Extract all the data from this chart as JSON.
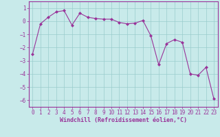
{
  "x": [
    0,
    1,
    2,
    3,
    4,
    5,
    6,
    7,
    8,
    9,
    10,
    11,
    12,
    13,
    14,
    15,
    16,
    17,
    18,
    19,
    20,
    21,
    22,
    23
  ],
  "y": [
    -2.5,
    -0.2,
    0.3,
    0.7,
    0.8,
    -0.3,
    0.6,
    0.3,
    0.2,
    0.15,
    0.15,
    -0.1,
    -0.2,
    -0.15,
    0.05,
    -1.1,
    -3.3,
    -1.7,
    -1.4,
    -1.6,
    -4.0,
    -4.1,
    -3.5,
    -5.9
  ],
  "line_color": "#993399",
  "marker": "D",
  "marker_size": 2.0,
  "bg_color": "#c8eaea",
  "grid_color": "#99cccc",
  "xlabel": "Windchill (Refroidissement éolien,°C)",
  "xlabel_color": "#993399",
  "tick_color": "#993399",
  "spine_color": "#993399",
  "ylim": [
    -6.5,
    1.5
  ],
  "xlim": [
    -0.5,
    23.5
  ],
  "yticks": [
    1,
    0,
    -1,
    -2,
    -3,
    -4,
    -5,
    -6
  ],
  "xticks": [
    0,
    1,
    2,
    3,
    4,
    5,
    6,
    7,
    8,
    9,
    10,
    11,
    12,
    13,
    14,
    15,
    16,
    17,
    18,
    19,
    20,
    21,
    22,
    23
  ],
  "tick_fontsize": 5.5,
  "xlabel_fontsize": 6.0
}
